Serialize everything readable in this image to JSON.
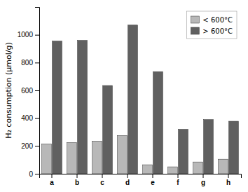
{
  "chart_data": {
    "type": "bar",
    "categories": [
      "a",
      "b",
      "c",
      "d",
      "e",
      "f",
      "g",
      "h"
    ],
    "series": [
      {
        "name": "< 600°C",
        "color": "#b8b8b8",
        "values": [
          215,
          225,
          235,
          275,
          65,
          50,
          85,
          105
        ]
      },
      {
        "name": "> 600°C",
        "color": "#606060",
        "values": [
          955,
          960,
          635,
          1070,
          735,
          320,
          390,
          378
        ]
      }
    ],
    "ylabel": "H₂ consumption (μmol/g)",
    "ylim": [
      0,
      1200
    ],
    "yticks": [
      0,
      200,
      400,
      600,
      800,
      1000
    ],
    "legend": "top-right",
    "grid": false
  }
}
